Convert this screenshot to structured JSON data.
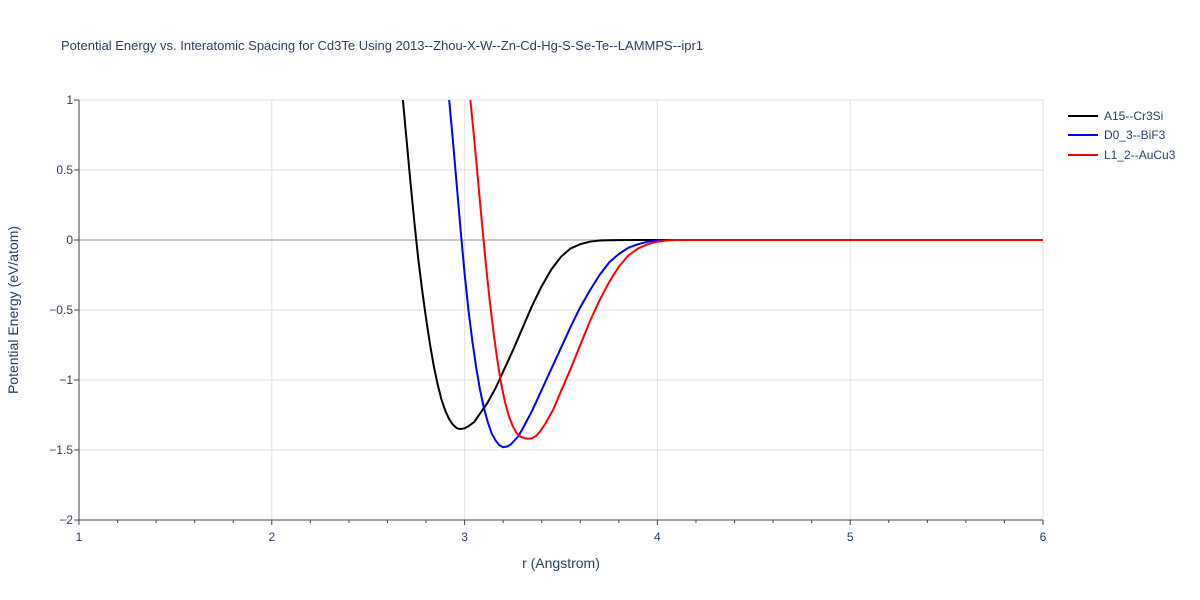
{
  "chart_data": {
    "type": "line",
    "title": "Potential Energy vs. Interatomic Spacing for Cd3Te Using 2013--Zhou-X-W--Zn-Cd-Hg-S-Se-Te--LAMMPS--ipr1",
    "xlabel": "r (Angstrom)",
    "ylabel": "Potential Energy (eV/atom)",
    "xlim": [
      1,
      6
    ],
    "ylim": [
      -2,
      1
    ],
    "xticks": [
      1,
      2,
      3,
      4,
      5,
      6
    ],
    "xtick_labels": [
      "1",
      "2",
      "3",
      "4",
      "5",
      "6"
    ],
    "yticks": [
      -2,
      -1.5,
      -1,
      -0.5,
      0,
      0.5,
      1
    ],
    "ytick_labels": [
      "−2",
      "−1.5",
      "−1",
      "−0.5",
      "0",
      "0.5",
      "1"
    ],
    "grid": true,
    "legend_position": "top-right",
    "series": [
      {
        "name": "A15--Cr3Si",
        "color": "#000000",
        "x": [
          2.68,
          2.7,
          2.72,
          2.74,
          2.76,
          2.78,
          2.8,
          2.82,
          2.84,
          2.86,
          2.88,
          2.9,
          2.92,
          2.94,
          2.96,
          2.98,
          3.0,
          3.02,
          3.05,
          3.08,
          3.12,
          3.16,
          3.2,
          3.25,
          3.3,
          3.35,
          3.4,
          3.45,
          3.5,
          3.55,
          3.6,
          3.65,
          3.7,
          3.75,
          3.8,
          3.9,
          4.0,
          5.0,
          6.0
        ],
        "y": [
          1.0,
          0.7,
          0.4,
          0.12,
          -0.14,
          -0.36,
          -0.56,
          -0.74,
          -0.9,
          -1.03,
          -1.14,
          -1.22,
          -1.28,
          -1.32,
          -1.345,
          -1.35,
          -1.345,
          -1.33,
          -1.3,
          -1.24,
          -1.16,
          -1.06,
          -0.94,
          -0.79,
          -0.63,
          -0.47,
          -0.33,
          -0.21,
          -0.12,
          -0.06,
          -0.03,
          -0.012,
          -0.004,
          -0.002,
          -0.001,
          0.0,
          0.0,
          0.0,
          0.0
        ]
      },
      {
        "name": "D0_3--BiF3",
        "color": "#0000ff",
        "x": [
          2.92,
          2.94,
          2.96,
          2.98,
          3.0,
          3.02,
          3.04,
          3.06,
          3.08,
          3.1,
          3.12,
          3.14,
          3.16,
          3.18,
          3.2,
          3.22,
          3.24,
          3.26,
          3.28,
          3.3,
          3.35,
          3.4,
          3.45,
          3.5,
          3.55,
          3.6,
          3.65,
          3.7,
          3.75,
          3.8,
          3.85,
          3.9,
          3.95,
          4.0,
          4.05,
          5.0,
          6.0
        ],
        "y": [
          1.0,
          0.7,
          0.38,
          0.06,
          -0.24,
          -0.5,
          -0.72,
          -0.91,
          -1.07,
          -1.2,
          -1.3,
          -1.38,
          -1.43,
          -1.465,
          -1.48,
          -1.475,
          -1.46,
          -1.43,
          -1.4,
          -1.35,
          -1.22,
          -1.07,
          -0.92,
          -0.77,
          -0.62,
          -0.48,
          -0.36,
          -0.25,
          -0.16,
          -0.1,
          -0.055,
          -0.03,
          -0.012,
          -0.004,
          0.0,
          0.0,
          0.0
        ]
      },
      {
        "name": "L1_2--AuCu3",
        "color": "#ff0000",
        "x": [
          3.03,
          3.05,
          3.07,
          3.09,
          3.11,
          3.13,
          3.15,
          3.17,
          3.19,
          3.21,
          3.23,
          3.25,
          3.27,
          3.29,
          3.31,
          3.33,
          3.35,
          3.37,
          3.39,
          3.42,
          3.46,
          3.5,
          3.55,
          3.6,
          3.65,
          3.7,
          3.75,
          3.8,
          3.85,
          3.9,
          3.95,
          4.0,
          4.05,
          4.1,
          5.0,
          6.0
        ],
        "y": [
          1.0,
          0.72,
          0.42,
          0.12,
          -0.17,
          -0.43,
          -0.66,
          -0.86,
          -1.03,
          -1.16,
          -1.26,
          -1.33,
          -1.38,
          -1.405,
          -1.415,
          -1.42,
          -1.415,
          -1.4,
          -1.37,
          -1.31,
          -1.21,
          -1.08,
          -0.92,
          -0.75,
          -0.58,
          -0.43,
          -0.3,
          -0.19,
          -0.11,
          -0.06,
          -0.03,
          -0.012,
          -0.004,
          0.0,
          0.0,
          0.0
        ]
      }
    ]
  }
}
